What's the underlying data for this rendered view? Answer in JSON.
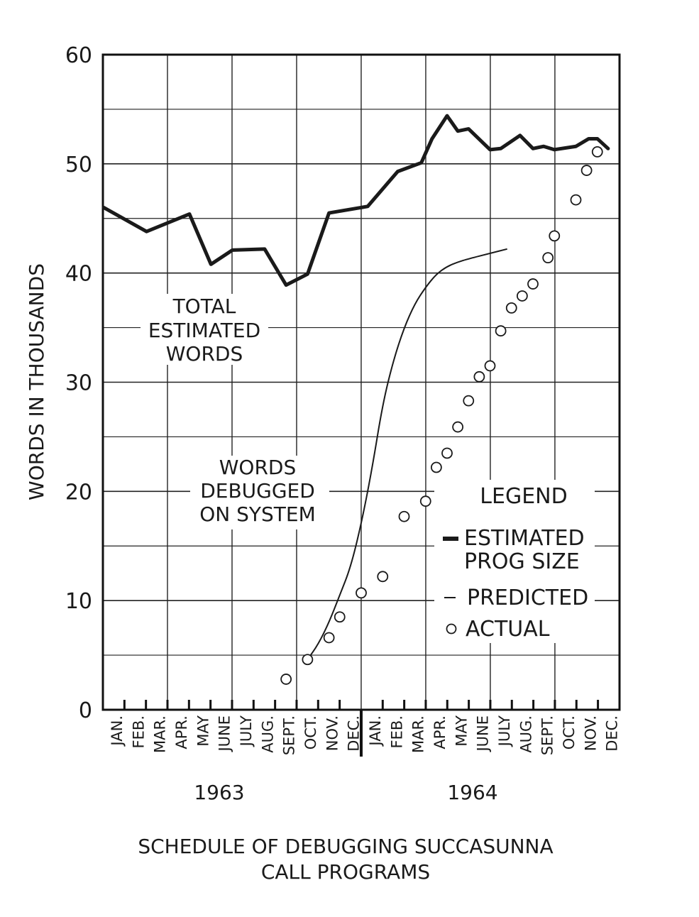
{
  "chart_data": {
    "type": "line",
    "title": "SCHEDULE OF DEBUGGING SUCCASUNNA",
    "title_line2": "CALL PROGRAMS",
    "ylabel": "WORDS IN THOUSANDS",
    "ylim": [
      0,
      60
    ],
    "yticks": [
      "0",
      "10",
      "20",
      "30",
      "40",
      "50",
      "60"
    ],
    "grid": true,
    "x_month_labels": [
      "JAN.",
      "FEB.",
      "MAR.",
      "APR.",
      "MAY",
      "JUNE",
      "JULY",
      "AUG.",
      "SEPT.",
      "OCT.",
      "NOV.",
      "DEC.",
      "JAN.",
      "FEB.",
      "MAR.",
      "APR.",
      "MAY",
      "JUNE",
      "JULY",
      "AUG.",
      "SEPT.",
      "OCT.",
      "NOV.",
      "DEC."
    ],
    "years": [
      "1963",
      "1964"
    ],
    "annotations": {
      "total_estimated": [
        "TOTAL",
        "ESTIMATED",
        "WORDS"
      ],
      "words_debugged": [
        "WORDS",
        "DEBUGGED",
        "ON SYSTEM"
      ]
    },
    "legend": {
      "title": "LEGEND",
      "estimated": [
        "ESTIMATED",
        "PROG SIZE"
      ],
      "predicted": "PREDICTED",
      "actual": "ACTUAL",
      "position": "right"
    },
    "series": [
      {
        "key": "estimated",
        "style": "thick-line",
        "points": [
          [
            0,
            46
          ],
          [
            2,
            43.8
          ],
          [
            4,
            45.4
          ],
          [
            5,
            40.8
          ],
          [
            6,
            42.1
          ],
          [
            7.5,
            42.2
          ],
          [
            8.5,
            38.9
          ],
          [
            9.5,
            39.9
          ],
          [
            10.5,
            45.5
          ],
          [
            12.3,
            46.1
          ],
          [
            13.7,
            49.3
          ],
          [
            14.8,
            50.1
          ],
          [
            15.3,
            52.3
          ],
          [
            16,
            54.4
          ],
          [
            16.5,
            53
          ],
          [
            17,
            53.2
          ],
          [
            18,
            51.3
          ],
          [
            18.5,
            51.4
          ],
          [
            19.4,
            52.6
          ],
          [
            20,
            51.4
          ],
          [
            20.5,
            51.6
          ],
          [
            21,
            51.3
          ],
          [
            22,
            51.6
          ],
          [
            22.6,
            52.3
          ],
          [
            23,
            52.3
          ],
          [
            23.5,
            51.4
          ]
        ]
      },
      {
        "key": "predicted",
        "style": "thin-line",
        "points": [
          [
            9.5,
            4.6
          ],
          [
            10,
            6
          ],
          [
            10.5,
            8
          ],
          [
            11,
            10.5
          ],
          [
            11.5,
            13
          ],
          [
            12,
            17
          ],
          [
            12.5,
            22
          ],
          [
            13,
            28
          ],
          [
            13.5,
            32
          ],
          [
            14,
            35
          ],
          [
            14.5,
            37.2
          ],
          [
            15,
            38.7
          ],
          [
            15.5,
            39.9
          ],
          [
            16,
            40.6
          ],
          [
            16.5,
            41
          ],
          [
            17,
            41.3
          ],
          [
            18,
            41.8
          ],
          [
            18.8,
            42.2
          ]
        ]
      },
      {
        "key": "actual",
        "style": "circles",
        "points": [
          [
            8.5,
            2.8
          ],
          [
            9.5,
            4.6
          ],
          [
            10.5,
            6.6
          ],
          [
            11,
            8.5
          ],
          [
            12,
            10.7
          ],
          [
            13,
            12.2
          ],
          [
            14,
            17.7
          ],
          [
            15,
            19.1
          ],
          [
            15.5,
            22.2
          ],
          [
            16,
            23.5
          ],
          [
            16.5,
            25.9
          ],
          [
            17,
            28.3
          ],
          [
            17.5,
            30.5
          ],
          [
            18,
            31.5
          ],
          [
            18.5,
            34.7
          ],
          [
            19,
            36.8
          ],
          [
            19.5,
            37.9
          ],
          [
            20,
            39
          ],
          [
            20.7,
            41.4
          ],
          [
            21,
            43.4
          ],
          [
            22,
            46.7
          ],
          [
            22.5,
            49.4
          ],
          [
            23,
            51.1
          ]
        ]
      }
    ]
  }
}
